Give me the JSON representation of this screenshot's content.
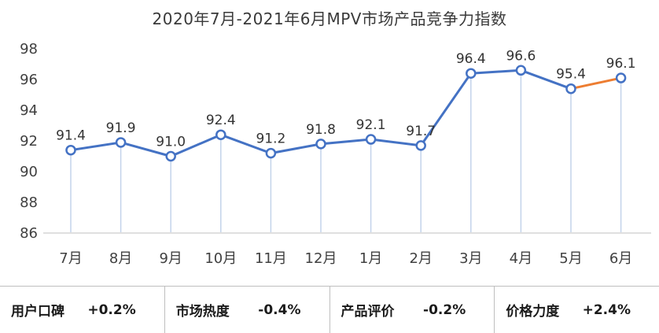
{
  "chart_data": {
    "type": "line",
    "title": "2020年7月-2021年6月MPV市场产品竞争力指数",
    "categories": [
      "7月",
      "8月",
      "9月",
      "10月",
      "11月",
      "12月",
      "1月",
      "2月",
      "3月",
      "4月",
      "5月",
      "6月"
    ],
    "values": [
      91.4,
      91.9,
      91.0,
      92.4,
      91.2,
      91.8,
      92.1,
      91.7,
      96.4,
      96.6,
      95.4,
      96.1
    ],
    "ylim": [
      86,
      98
    ],
    "yticks": [
      86,
      88,
      90,
      92,
      94,
      96,
      98
    ],
    "grid": false,
    "legend": "none",
    "colors": {
      "line": "#4472C4",
      "last_segment": "#ED7D31",
      "drop_line": "#C3D3EA",
      "axis": "#BFBFBF",
      "text": "#404040",
      "marker_fill": "#FFFFFF"
    }
  },
  "stats": [
    {
      "label": "用户口碑",
      "value": "+0.2%"
    },
    {
      "label": "市场热度",
      "value": "-0.4%"
    },
    {
      "label": "产品评价",
      "value": "-0.2%"
    },
    {
      "label": "价格力度",
      "value": "+2.4%"
    }
  ]
}
